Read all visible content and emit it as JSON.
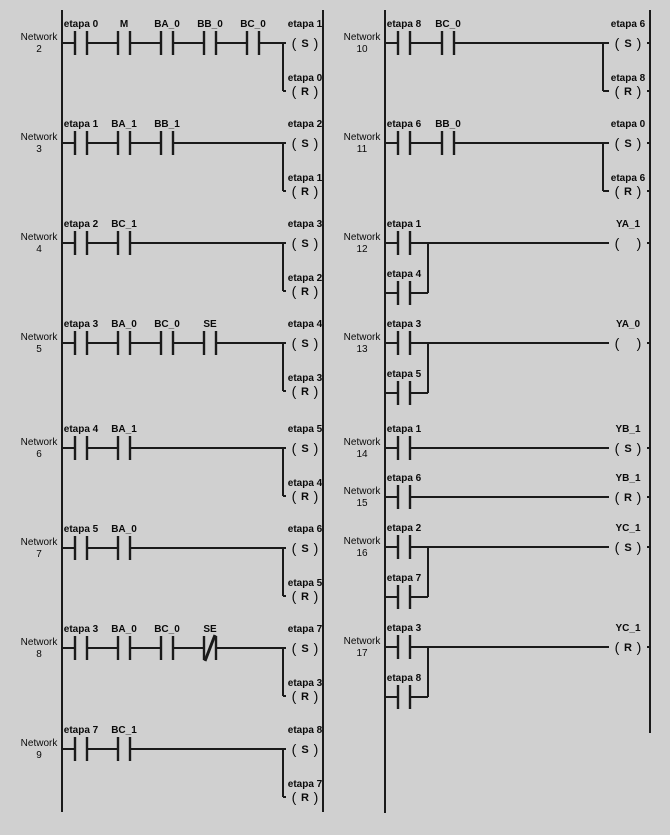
{
  "diagram": {
    "title": "ladder-logic-networks",
    "background_color": "#d0d0d0",
    "line_color": "#1a1a1a",
    "text_color": "#0a0a0a",
    "network_label": "Network",
    "networks": [
      {
        "label": "Network",
        "number": "2",
        "column": 0,
        "contacts": [
          {
            "name": "etapa 0"
          },
          {
            "name": "M"
          },
          {
            "name": "BA_0"
          },
          {
            "name": "BB_0"
          },
          {
            "name": "BC_0"
          }
        ],
        "coil": {
          "name": "etapa 1",
          "type": "S"
        },
        "reset_coil": {
          "name": "etapa 0",
          "type": "R"
        }
      },
      {
        "label": "Network",
        "number": "3",
        "column": 0,
        "contacts": [
          {
            "name": "etapa 1"
          },
          {
            "name": "BA_1"
          },
          {
            "name": "BB_1"
          }
        ],
        "coil": {
          "name": "etapa 2",
          "type": "S"
        },
        "reset_coil": {
          "name": "etapa 1",
          "type": "R"
        }
      },
      {
        "label": "Network",
        "number": "4",
        "column": 0,
        "contacts": [
          {
            "name": "etapa 2"
          },
          {
            "name": "BC_1"
          }
        ],
        "coil": {
          "name": "etapa 3",
          "type": "S"
        },
        "reset_coil": {
          "name": "etapa 2",
          "type": "R"
        }
      },
      {
        "label": "Network",
        "number": "5",
        "column": 0,
        "contacts": [
          {
            "name": "etapa 3"
          },
          {
            "name": "BA_0"
          },
          {
            "name": "BC_0"
          },
          {
            "name": "SE"
          }
        ],
        "coil": {
          "name": "etapa 4",
          "type": "S"
        },
        "reset_coil": {
          "name": "etapa 3",
          "type": "R"
        }
      },
      {
        "label": "Network",
        "number": "6",
        "column": 0,
        "contacts": [
          {
            "name": "etapa 4"
          },
          {
            "name": "BA_1"
          }
        ],
        "coil": {
          "name": "etapa 5",
          "type": "S"
        },
        "reset_coil": {
          "name": "etapa 4",
          "type": "R"
        }
      },
      {
        "label": "Network",
        "number": "7",
        "column": 0,
        "contacts": [
          {
            "name": "etapa 5"
          },
          {
            "name": "BA_0"
          }
        ],
        "coil": {
          "name": "etapa 6",
          "type": "S"
        },
        "reset_coil": {
          "name": "etapa 5",
          "type": "R"
        }
      },
      {
        "label": "Network",
        "number": "8",
        "column": 0,
        "contacts": [
          {
            "name": "etapa 3"
          },
          {
            "name": "BA_0"
          },
          {
            "name": "BC_0"
          },
          {
            "name": "SE",
            "nc": true
          }
        ],
        "coil": {
          "name": "etapa 7",
          "type": "S"
        },
        "reset_coil": {
          "name": "etapa 3",
          "type": "R"
        }
      },
      {
        "label": "Network",
        "number": "9",
        "column": 0,
        "contacts": [
          {
            "name": "etapa 7"
          },
          {
            "name": "BC_1"
          }
        ],
        "coil": {
          "name": "etapa 8",
          "type": "S"
        },
        "reset_coil": {
          "name": "etapa 7",
          "type": "R"
        }
      },
      {
        "label": "Network",
        "number": "10",
        "column": 1,
        "contacts": [
          {
            "name": "etapa 8"
          },
          {
            "name": "BC_0"
          }
        ],
        "coil": {
          "name": "etapa 6",
          "type": "S"
        },
        "reset_coil": {
          "name": "etapa 8",
          "type": "R"
        }
      },
      {
        "label": "Network",
        "number": "11",
        "column": 1,
        "contacts": [
          {
            "name": "etapa 6"
          },
          {
            "name": "BB_0"
          }
        ],
        "coil": {
          "name": "etapa 0",
          "type": "S"
        },
        "reset_coil": {
          "name": "etapa 6",
          "type": "R"
        }
      },
      {
        "label": "Network",
        "number": "12",
        "column": 1,
        "contacts": [
          {
            "name": "etapa 1"
          }
        ],
        "parallel_contact": {
          "name": "etapa 4"
        },
        "coil": {
          "name": "YA_1",
          "type": ""
        }
      },
      {
        "label": "Network",
        "number": "13",
        "column": 1,
        "contacts": [
          {
            "name": "etapa 3"
          }
        ],
        "parallel_contact": {
          "name": "etapa 5"
        },
        "coil": {
          "name": "YA_0",
          "type": ""
        }
      },
      {
        "label": "Network",
        "number": "14",
        "column": 1,
        "contacts": [
          {
            "name": "etapa 1"
          }
        ],
        "coil": {
          "name": "YB_1",
          "type": "S"
        }
      },
      {
        "label": "Network",
        "number": "15",
        "column": 1,
        "contacts": [
          {
            "name": "etapa 6"
          }
        ],
        "coil": {
          "name": "YB_1",
          "type": "R"
        }
      },
      {
        "label": "Network",
        "number": "16",
        "column": 1,
        "contacts": [
          {
            "name": "etapa 2"
          }
        ],
        "parallel_contact": {
          "name": "etapa 7"
        },
        "coil": {
          "name": "YC_1",
          "type": "S"
        }
      },
      {
        "label": "Network",
        "number": "17",
        "column": 1,
        "contacts": [
          {
            "name": "etapa 3"
          }
        ],
        "parallel_contact": {
          "name": "etapa 8"
        },
        "coil": {
          "name": "YC_1",
          "type": "R"
        }
      }
    ]
  }
}
